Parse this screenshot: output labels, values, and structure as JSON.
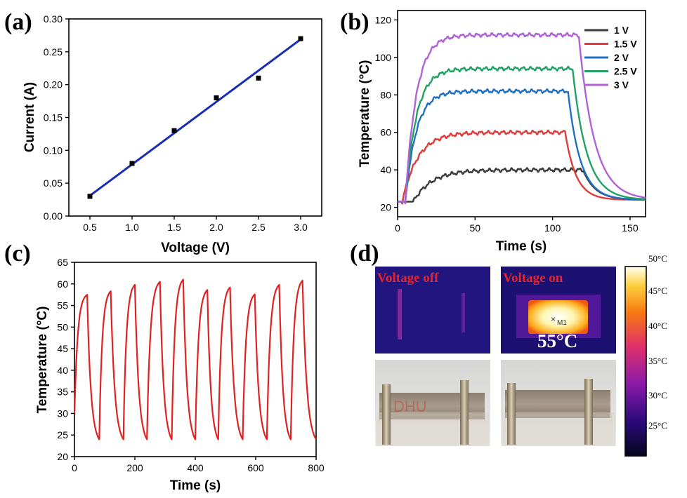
{
  "panels": {
    "a": "(a)",
    "b": "(b)",
    "c": "(c)",
    "d": "(d)"
  },
  "chart_data": [
    {
      "id": "a",
      "type": "scatter",
      "title": "",
      "xlabel": "Voltage (V)",
      "ylabel": "Current (A)",
      "xlim": [
        0.25,
        3.25
      ],
      "ylim": [
        0.0,
        0.3
      ],
      "xticks": [
        "0.5",
        "1.0",
        "1.5",
        "2.0",
        "2.5",
        "3.0"
      ],
      "yticks": [
        "0.00",
        "0.05",
        "0.10",
        "0.15",
        "0.20",
        "0.25",
        "0.30"
      ],
      "x": [
        0.5,
        1.0,
        1.5,
        2.0,
        2.5,
        3.0
      ],
      "y": [
        0.03,
        0.08,
        0.13,
        0.18,
        0.21,
        0.27
      ],
      "fit_line": {
        "x": [
          0.5,
          3.0
        ],
        "y": [
          0.031,
          0.269
        ],
        "color": "#1a2cb5"
      }
    },
    {
      "id": "b",
      "type": "line",
      "title": "",
      "xlabel": "Time (s)",
      "ylabel": "Temperature (°C)",
      "xlim": [
        0,
        160
      ],
      "ylim": [
        15,
        125
      ],
      "xticks": [
        "0",
        "50",
        "100",
        "150"
      ],
      "yticks": [
        "20",
        "40",
        "60",
        "80",
        "100",
        "120"
      ],
      "legend_position": "top-right",
      "series": [
        {
          "name": "1 V",
          "color": "#3a3a3a",
          "onset": 10,
          "tau": 12,
          "plateau": 40,
          "off_time": 120,
          "tau_off": 8
        },
        {
          "name": "1.5 V",
          "color": "#e03a3a",
          "onset": 3,
          "tau": 10,
          "plateau": 60,
          "off_time": 108,
          "tau_off": 7
        },
        {
          "name": "2 V",
          "color": "#1f6fc4",
          "onset": 5,
          "tau": 7,
          "plateau": 82,
          "off_time": 110,
          "tau_off": 8
        },
        {
          "name": "2.5 V",
          "color": "#22a062",
          "onset": 5,
          "tau": 7,
          "plateau": 94,
          "off_time": 113,
          "tau_off": 9
        },
        {
          "name": "3 V",
          "color": "#b061d6",
          "onset": 5,
          "tau": 7,
          "plateau": 112,
          "off_time": 117,
          "tau_off": 10
        }
      ]
    },
    {
      "id": "c",
      "type": "line",
      "title": "",
      "xlabel": "Time (s)",
      "ylabel": "Temperature (°C)",
      "xlim": [
        0,
        800
      ],
      "ylim": [
        20,
        65
      ],
      "xticks": [
        "0",
        "200",
        "400",
        "600",
        "800"
      ],
      "yticks": [
        "20",
        "25",
        "30",
        "35",
        "40",
        "45",
        "50",
        "55",
        "60",
        "65"
      ],
      "color": "#e02222",
      "cycle_peaks_time": [
        42,
        120,
        200,
        283,
        360,
        440,
        515,
        597,
        678,
        755
      ],
      "cycle_peak_temp": [
        57.5,
        58.3,
        59.8,
        60.5,
        61.0,
        58.6,
        59.2,
        57.6,
        59.8,
        60.8
      ],
      "cycle_min_time": [
        82,
        162,
        240,
        322,
        400,
        476,
        557,
        637,
        716,
        800
      ],
      "cycle_min_temp": [
        24.0,
        24.0,
        24.0,
        24.0,
        24.0,
        24.0,
        24.0,
        24.0,
        24.0,
        24.0
      ]
    }
  ],
  "thermal": {
    "label_off": "Voltage off",
    "label_on": "Voltage on",
    "marker": "M1",
    "temperature": "55°C",
    "photo_text": "DHU",
    "colorbar_labels": [
      "50°C",
      "45°C",
      "40°C",
      "35°C",
      "30°C",
      "25°C"
    ]
  }
}
